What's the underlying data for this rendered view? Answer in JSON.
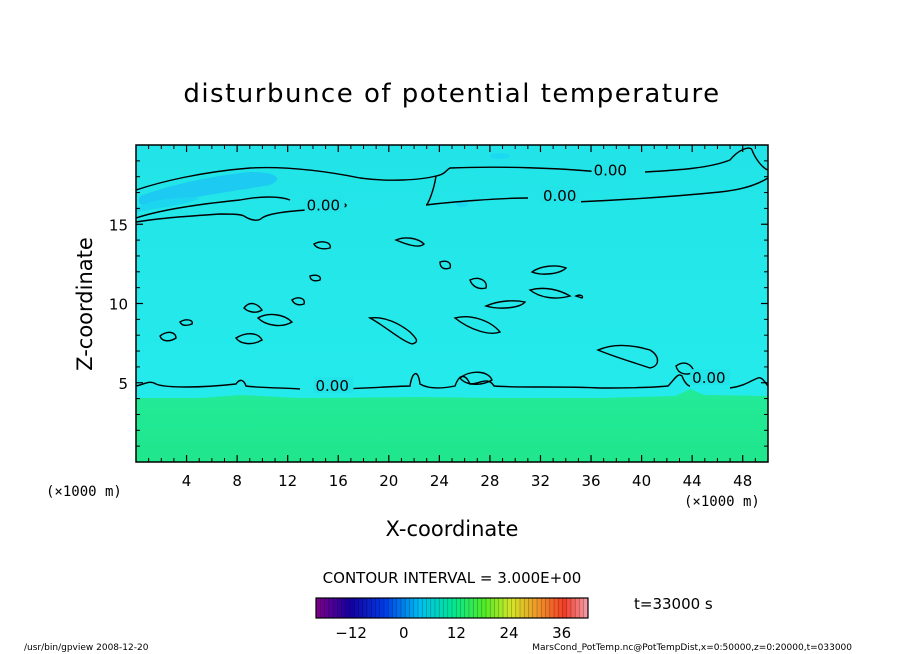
{
  "chart_data": {
    "type": "heatmap",
    "title": "disturbunce of potential temperature",
    "xlabel": "X-coordinate",
    "ylabel": "Z-coordinate",
    "x_unit_left": "(×1000 m)",
    "x_unit_right": "(×1000 m)",
    "xlim": [
      0,
      50
    ],
    "ylim": [
      0,
      20
    ],
    "xticks": [
      4,
      8,
      12,
      16,
      20,
      24,
      28,
      32,
      36,
      40,
      44,
      48
    ],
    "yticks": [
      5,
      10,
      15
    ],
    "contour_interval_text": "CONTOUR INTERVAL = 3.000E+00",
    "contour_labels": [
      {
        "text": "0.00",
        "x": 36.2,
        "z": 18.2
      },
      {
        "text": "0.00",
        "x": 32.2,
        "z": 16.6
      },
      {
        "text": "0.00",
        "x": 13.5,
        "z": 16.0
      },
      {
        "text": "0.00",
        "x": 14.2,
        "z": 4.6
      },
      {
        "text": "0.00",
        "x": 44.0,
        "z": 5.1
      }
    ],
    "colorbar": {
      "min": -20,
      "max": 42,
      "ticks": [
        -12,
        0,
        12,
        24,
        36
      ]
    },
    "time_label": "t=33000 s",
    "colors": {
      "upper_field": "#22e8e8",
      "lower_field": "#22e890",
      "blue_patch": "#1cc8f0",
      "frame": "#000000"
    }
  },
  "footer": {
    "left": "/usr/bin/gpview  2008-12-20",
    "right": "MarsCond_PotTemp.nc@PotTempDist,x=0:50000,z=0:20000,t=033000"
  }
}
